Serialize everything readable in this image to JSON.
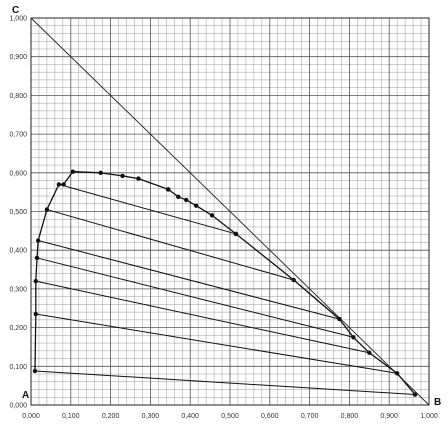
{
  "chart_data": {
    "type": "scatter",
    "title": "",
    "xlabel": "",
    "ylabel": "",
    "xlim": [
      0,
      1
    ],
    "ylim": [
      0,
      1
    ],
    "grid": true,
    "corner_labels": {
      "top": "C",
      "origin": "A",
      "right": "B"
    },
    "x_ticks": [
      "0,000",
      "0,100",
      "0,200",
      "0,300",
      "0,400",
      "0,500",
      "0,600",
      "0,700",
      "0,800",
      "0,900",
      "1,000"
    ],
    "y_ticks": [
      "0,000",
      "0,100",
      "0,200",
      "0,300",
      "0,400",
      "0,500",
      "0,600",
      "0,700",
      "0,800",
      "0,900",
      "1,000"
    ],
    "hypotenuse": [
      [
        0,
        1
      ],
      [
        1,
        0
      ]
    ],
    "series": [
      {
        "role": "left-branch",
        "points": [
          [
            0.01,
            0.088
          ],
          [
            0.012,
            0.235
          ],
          [
            0.012,
            0.32
          ],
          [
            0.015,
            0.38
          ],
          [
            0.018,
            0.425
          ],
          [
            0.04,
            0.505
          ],
          [
            0.07,
            0.57
          ],
          [
            0.082,
            0.57
          ],
          [
            0.105,
            0.603
          ],
          [
            0.175,
            0.6
          ],
          [
            0.23,
            0.592
          ],
          [
            0.27,
            0.585
          ],
          [
            0.345,
            0.557
          ]
        ]
      },
      {
        "role": "right-branch",
        "points": [
          [
            0.345,
            0.557
          ],
          [
            0.37,
            0.538
          ],
          [
            0.39,
            0.53
          ],
          [
            0.415,
            0.515
          ],
          [
            0.455,
            0.49
          ],
          [
            0.515,
            0.442
          ]
        ]
      },
      {
        "role": "raffinate-branch",
        "points": [
          [
            0.515,
            0.442
          ],
          [
            0.66,
            0.323
          ],
          [
            0.775,
            0.222
          ],
          [
            0.81,
            0.175
          ],
          [
            0.85,
            0.135
          ],
          [
            0.92,
            0.082
          ],
          [
            0.965,
            0.027
          ]
        ]
      }
    ],
    "tie_lines": [
      [
        [
          0.01,
          0.088
        ],
        [
          0.965,
          0.027
        ]
      ],
      [
        [
          0.012,
          0.235
        ],
        [
          0.92,
          0.082
        ]
      ],
      [
        [
          0.012,
          0.32
        ],
        [
          0.85,
          0.135
        ]
      ],
      [
        [
          0.015,
          0.38
        ],
        [
          0.81,
          0.175
        ]
      ],
      [
        [
          0.018,
          0.425
        ],
        [
          0.775,
          0.222
        ]
      ],
      [
        [
          0.04,
          0.505
        ],
        [
          0.66,
          0.323
        ]
      ],
      [
        [
          0.07,
          0.57
        ],
        [
          0.515,
          0.442
        ]
      ]
    ]
  }
}
